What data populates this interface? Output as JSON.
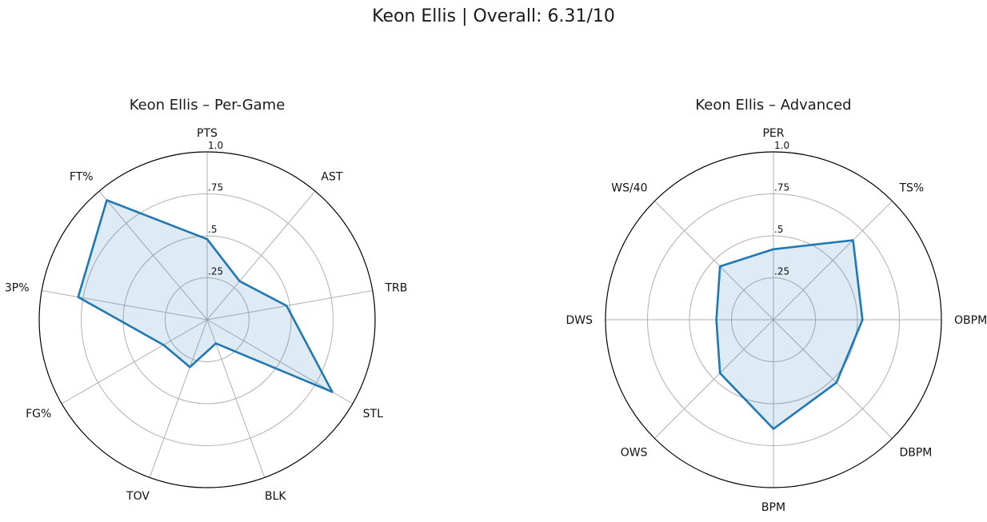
{
  "suptitle": "Keon Ellis | Overall: 6.31/10",
  "chart_data": [
    {
      "type": "radar",
      "title": "Keon Ellis – Per-Game",
      "categories": [
        "PTS",
        "AST",
        "TRB",
        "STL",
        "BLK",
        "TOV",
        "FG%",
        "3P%",
        "FT%"
      ],
      "values": [
        0.48,
        0.3,
        0.48,
        0.86,
        0.15,
        0.3,
        0.3,
        0.78,
        0.93
      ],
      "rlim": [
        0,
        1.0
      ],
      "rticks": [
        ".25",
        ".5",
        ".75",
        "1.0"
      ],
      "color": "#1f77b4"
    },
    {
      "type": "radar",
      "title": "Keon Ellis – Advanced",
      "categories": [
        "PER",
        "TS%",
        "OBPM",
        "DBPM",
        "BPM",
        "OWS",
        "DWS",
        "WS/40"
      ],
      "values": [
        0.42,
        0.67,
        0.53,
        0.53,
        0.65,
        0.45,
        0.34,
        0.45
      ],
      "rlim": [
        0,
        1.0
      ],
      "rticks": [
        ".25",
        ".5",
        ".75",
        "1.0"
      ],
      "color": "#1f77b4"
    }
  ]
}
